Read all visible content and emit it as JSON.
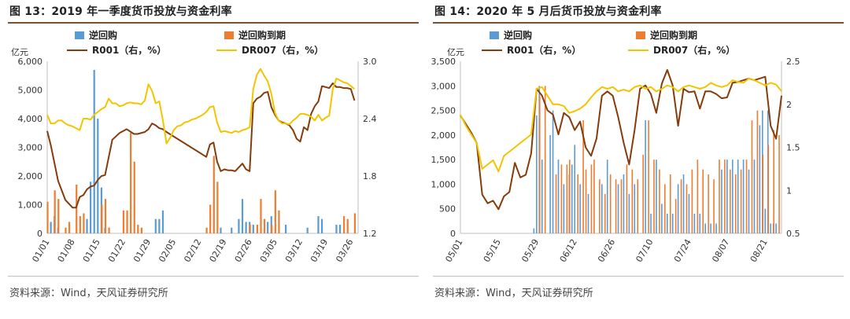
{
  "chart_data": [
    {
      "type": "bar+line",
      "title": "图 13：2019 年一季度货币投放与资金利率",
      "source": "资料来源：Wind，天风证券研究所",
      "ylabel_left": "亿元",
      "ylim_left": [
        0,
        6000
      ],
      "yticks_left": [
        "0",
        "1,000",
        "2,000",
        "3,000",
        "4,000",
        "5,000",
        "6,000"
      ],
      "ylim_right": [
        1.2,
        3.0
      ],
      "yticks_right": [
        "1.2",
        "1.8",
        "2.4",
        "3.0"
      ],
      "xlim": [
        0,
        86
      ],
      "xticks": [
        {
          "pos": 0,
          "label": "01/01"
        },
        {
          "pos": 7,
          "label": "01/08"
        },
        {
          "pos": 14,
          "label": "01/15"
        },
        {
          "pos": 21,
          "label": "01/22"
        },
        {
          "pos": 28,
          "label": "01/29"
        },
        {
          "pos": 35,
          "label": "02/05"
        },
        {
          "pos": 42,
          "label": "02/12"
        },
        {
          "pos": 49,
          "label": "02/19"
        },
        {
          "pos": 56,
          "label": "02/26"
        },
        {
          "pos": 63,
          "label": "03/05"
        },
        {
          "pos": 70,
          "label": "03/12"
        },
        {
          "pos": 77,
          "label": "03/19"
        },
        {
          "pos": 84,
          "label": "03/26"
        }
      ],
      "legend": [
        "逆回购",
        "逆回购到期",
        "R001（右，%）",
        "DR007（右，%）"
      ],
      "series": [
        {
          "name": "逆回购",
          "kind": "bar",
          "color": "#5b9bd5",
          "x": [
            1,
            2,
            3,
            11,
            12,
            13,
            14,
            15,
            16,
            30,
            31,
            32,
            48,
            51,
            53,
            54,
            55,
            56,
            57,
            61,
            62,
            66,
            72,
            75,
            76,
            80,
            81
          ],
          "values": [
            400,
            600,
            200,
            500,
            1800,
            5700,
            4000,
            1600,
            200,
            500,
            500,
            800,
            200,
            200,
            500,
            1200,
            400,
            400,
            300,
            400,
            600,
            300,
            200,
            600,
            500,
            300,
            300
          ]
        },
        {
          "name": "逆回购到期",
          "kind": "bar",
          "color": "#ed7d31",
          "x": [
            0,
            2,
            3,
            5,
            6,
            8,
            9,
            10,
            15,
            16,
            17,
            21,
            22,
            23,
            24,
            25,
            26,
            44,
            45,
            46,
            47,
            56,
            58,
            59,
            60,
            62,
            63,
            64,
            82,
            83,
            85
          ],
          "values": [
            1100,
            1500,
            1200,
            200,
            400,
            1700,
            600,
            700,
            1000,
            1200,
            200,
            800,
            800,
            3500,
            2500,
            300,
            200,
            200,
            1000,
            2700,
            1800,
            300,
            300,
            1200,
            500,
            300,
            1500,
            800,
            600,
            500,
            700
          ]
        },
        {
          "name": "R001（右，%）",
          "kind": "line",
          "color": "#843c0c",
          "x": [
            0,
            1,
            3,
            5,
            7,
            8,
            9,
            10,
            11,
            12,
            13,
            14,
            15,
            16,
            18,
            20,
            22,
            24,
            25,
            27,
            28,
            29,
            30,
            31,
            32,
            33,
            44,
            45,
            46,
            47,
            48,
            49,
            50,
            51,
            52,
            53,
            54,
            55,
            56,
            57,
            58,
            59,
            60,
            61,
            62,
            63,
            64,
            65,
            66,
            67,
            68,
            69,
            70,
            71,
            72,
            73,
            74,
            75,
            76,
            77,
            78,
            79,
            80,
            81,
            82,
            83,
            84,
            85
          ],
          "values": [
            2.27,
            2.12,
            1.75,
            1.55,
            1.47,
            1.47,
            1.58,
            1.6,
            1.66,
            1.69,
            1.7,
            1.76,
            1.8,
            1.81,
            2.18,
            2.25,
            2.29,
            2.24,
            2.24,
            2.26,
            2.29,
            2.35,
            2.33,
            2.3,
            2.29,
            2.26,
            2.0,
            2.13,
            2.15,
            1.95,
            1.85,
            1.87,
            1.86,
            1.86,
            1.85,
            1.89,
            1.93,
            1.87,
            1.85,
            2.56,
            2.61,
            2.63,
            2.67,
            2.68,
            2.52,
            2.44,
            2.38,
            2.36,
            2.35,
            2.33,
            2.28,
            2.19,
            2.16,
            2.31,
            2.28,
            2.45,
            2.53,
            2.58,
            2.74,
            2.73,
            2.72,
            2.77,
            2.73,
            2.73,
            2.72,
            2.72,
            2.71,
            2.59
          ]
        },
        {
          "name": "DR007（右，%）",
          "kind": "line",
          "color": "#f2c500",
          "x": [
            0,
            1,
            2,
            3,
            4,
            5,
            6,
            7,
            8,
            9,
            10,
            11,
            12,
            13,
            14,
            15,
            16,
            17,
            18,
            19,
            20,
            21,
            22,
            23,
            24,
            25,
            26,
            27,
            28,
            29,
            30,
            31,
            32,
            33,
            34,
            35,
            36,
            37,
            38,
            39,
            40,
            41,
            42,
            43,
            44,
            45,
            46,
            47,
            48,
            49,
            50,
            51,
            52,
            53,
            54,
            55,
            56,
            57,
            58,
            59,
            60,
            61,
            62,
            63,
            64,
            65,
            66,
            67,
            68,
            69,
            70,
            71,
            72,
            73,
            74,
            75,
            76,
            77,
            78,
            79,
            80,
            81,
            82,
            83,
            84,
            85
          ],
          "values": [
            2.44,
            2.35,
            2.35,
            2.38,
            2.38,
            2.35,
            2.33,
            2.32,
            2.3,
            2.28,
            2.4,
            2.4,
            2.39,
            2.44,
            2.47,
            2.5,
            2.52,
            2.61,
            2.56,
            2.56,
            2.53,
            2.54,
            2.56,
            2.57,
            2.56,
            2.56,
            2.55,
            2.59,
            2.76,
            2.69,
            2.56,
            2.58,
            2.38,
            2.14,
            2.2,
            2.28,
            2.32,
            2.33,
            2.36,
            2.37,
            2.39,
            2.4,
            2.42,
            2.44,
            2.47,
            2.52,
            2.53,
            2.36,
            2.26,
            2.27,
            2.26,
            2.25,
            2.27,
            2.26,
            2.28,
            2.29,
            2.31,
            2.71,
            2.86,
            2.92,
            2.85,
            2.79,
            2.66,
            2.46,
            2.38,
            2.35,
            2.35,
            2.34,
            2.38,
            2.41,
            2.45,
            2.45,
            2.44,
            2.42,
            2.38,
            2.44,
            2.38,
            2.41,
            2.43,
            2.71,
            2.82,
            2.8,
            2.78,
            2.77,
            2.74,
            2.71
          ]
        }
      ]
    },
    {
      "type": "bar+line",
      "title": "图 14：2020 年 5 月后货币投放与资金利率",
      "source": "资料来源：Wind，天风证券研究所",
      "ylabel_left": "亿元",
      "ylim_left": [
        0,
        3500
      ],
      "yticks_left": [
        "0",
        "500",
        "1,000",
        "1,500",
        "2,000",
        "2,500",
        "3,000",
        "3,500"
      ],
      "ylim_right": [
        0.5,
        2.5
      ],
      "yticks_right": [
        "0.5",
        "1",
        "1.5",
        "2",
        "2.5"
      ],
      "xlim": [
        0,
        118
      ],
      "xticks": [
        {
          "pos": 0,
          "label": "05/01"
        },
        {
          "pos": 14,
          "label": "05/15"
        },
        {
          "pos": 28,
          "label": "05/29"
        },
        {
          "pos": 42,
          "label": "06/12"
        },
        {
          "pos": 56,
          "label": "06/26"
        },
        {
          "pos": 70,
          "label": "07/10"
        },
        {
          "pos": 84,
          "label": "07/24"
        },
        {
          "pos": 98,
          "label": "08/07"
        },
        {
          "pos": 112,
          "label": "08/21"
        }
      ],
      "legend": [
        "逆回购",
        "逆回购到期",
        "R001（右，%）",
        "DR007（右，%）"
      ],
      "series": [
        {
          "name": "逆回购",
          "kind": "bar",
          "color": "#5b9bd5",
          "x": [
            27,
            28,
            29,
            30,
            33,
            34,
            36,
            38,
            40,
            41,
            42,
            44,
            47,
            52,
            54,
            58,
            60,
            62,
            64,
            68,
            70,
            72,
            74,
            76,
            78,
            80,
            82,
            84,
            86,
            88,
            90,
            92,
            94,
            96,
            98,
            100,
            102,
            104,
            106,
            108,
            110,
            111,
            112,
            113,
            114,
            115,
            116
          ],
          "values": [
            100,
            2400,
            3000,
            1500,
            2000,
            2500,
            1500,
            1000,
            1200,
            1400,
            1800,
            1000,
            800,
            1000,
            1500,
            1000,
            1200,
            800,
            1000,
            2300,
            400,
            1500,
            600,
            400,
            400,
            1000,
            1200,
            800,
            400,
            400,
            200,
            200,
            200,
            1300,
            1500,
            1500,
            1500,
            1500,
            1300,
            1500,
            2200,
            2500,
            500,
            2500,
            200,
            200,
            200
          ]
        },
        {
          "name": "逆回购到期",
          "kind": "bar",
          "color": "#ed7d31",
          "x": [
            29,
            31,
            35,
            37,
            39,
            40,
            43,
            45,
            46,
            48,
            49,
            51,
            53,
            55,
            57,
            59,
            61,
            63,
            65,
            67,
            69,
            71,
            73,
            75,
            77,
            79,
            81,
            83,
            85,
            87,
            89,
            91,
            93,
            95,
            97,
            99,
            101,
            103,
            105,
            107,
            109,
            111,
            113,
            115,
            117
          ],
          "values": [
            2800,
            3000,
            1200,
            1400,
            1400,
            1500,
            1200,
            2300,
            1300,
            1400,
            1500,
            1100,
            800,
            1200,
            1100,
            1100,
            1400,
            1300,
            1100,
            1600,
            2300,
            1500,
            1300,
            1000,
            1200,
            700,
            1100,
            1000,
            1300,
            1500,
            1300,
            1200,
            1100,
            1500,
            1500,
            1300,
            1200,
            1300,
            1500,
            2300,
            2500,
            1600,
            1800,
            2100,
            2000
          ]
        },
        {
          "name": "R001（右，%）",
          "kind": "line",
          "color": "#843c0c",
          "x": [
            0,
            2,
            4,
            6,
            8,
            10,
            12,
            14,
            16,
            18,
            20,
            22,
            24,
            26,
            28,
            30,
            32,
            34,
            36,
            38,
            40,
            42,
            44,
            46,
            48,
            50,
            52,
            54,
            56,
            58,
            60,
            62,
            64,
            66,
            68,
            70,
            72,
            74,
            76,
            78,
            80,
            82,
            84,
            86,
            88,
            90,
            92,
            94,
            96,
            98,
            100,
            102,
            104,
            106,
            108,
            110,
            112,
            114,
            116,
            118
          ],
          "values": [
            1.87,
            1.77,
            1.67,
            1.55,
            0.95,
            0.85,
            0.88,
            0.78,
            0.93,
            0.98,
            1.32,
            1.15,
            1.18,
            1.43,
            2.18,
            2.1,
            1.93,
            1.88,
            1.65,
            1.9,
            1.85,
            1.7,
            1.8,
            1.5,
            1.4,
            1.6,
            2.1,
            2.15,
            2.1,
            1.85,
            1.55,
            1.3,
            1.7,
            2.18,
            2.22,
            2.12,
            1.9,
            2.24,
            2.4,
            2.22,
            1.75,
            2.18,
            2.14,
            2.15,
            1.95,
            2.15,
            2.15,
            2.12,
            2.07,
            2.08,
            2.25,
            2.26,
            2.28,
            2.3,
            2.28,
            2.3,
            2.32,
            1.75,
            1.6,
            2.1
          ]
        },
        {
          "name": "DR007（右，%）",
          "kind": "line",
          "color": "#f2c500",
          "x": [
            0,
            2,
            4,
            6,
            8,
            10,
            12,
            14,
            16,
            18,
            20,
            22,
            24,
            26,
            28,
            30,
            32,
            34,
            36,
            38,
            40,
            42,
            44,
            46,
            48,
            50,
            52,
            54,
            56,
            58,
            60,
            62,
            64,
            66,
            68,
            70,
            72,
            74,
            76,
            78,
            80,
            82,
            84,
            86,
            88,
            90,
            92,
            94,
            96,
            98,
            100,
            102,
            104,
            106,
            108,
            110,
            112,
            114,
            116,
            118
          ],
          "values": [
            1.88,
            1.75,
            1.65,
            1.55,
            1.25,
            1.3,
            1.35,
            1.22,
            1.4,
            1.45,
            1.5,
            1.55,
            1.6,
            1.65,
            2.18,
            2.2,
            2.1,
            2.0,
            2.0,
            1.98,
            1.9,
            1.92,
            1.95,
            2.0,
            2.08,
            2.15,
            2.2,
            2.18,
            2.2,
            2.15,
            2.17,
            2.15,
            2.2,
            2.22,
            2.18,
            2.2,
            2.15,
            2.18,
            2.22,
            2.2,
            2.15,
            2.2,
            2.22,
            2.2,
            2.18,
            2.2,
            2.25,
            2.22,
            2.2,
            2.22,
            2.28,
            2.26,
            2.25,
            2.3,
            2.28,
            2.25,
            2.22,
            2.25,
            2.23,
            2.15
          ]
        }
      ]
    }
  ]
}
